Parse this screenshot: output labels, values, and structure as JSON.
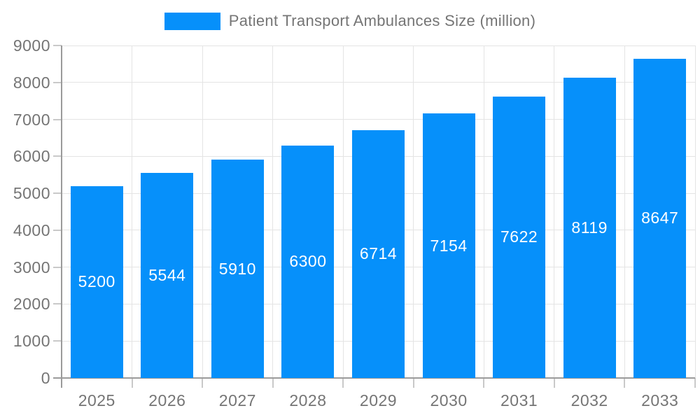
{
  "legend": {
    "label": "Patient Transport Ambulances Size (million)"
  },
  "chart_data": {
    "type": "bar",
    "title": "Patient Transport Ambulances Size (million)",
    "categories": [
      "2025",
      "2026",
      "2027",
      "2028",
      "2029",
      "2030",
      "2031",
      "2032",
      "2033"
    ],
    "values": [
      5200,
      5544,
      5910,
      6300,
      6714,
      7154,
      7622,
      8119,
      8647
    ],
    "xlabel": "",
    "ylabel": "",
    "ylim": [
      0,
      9000
    ],
    "ytick_interval": 1000,
    "ytick_labels": [
      "0",
      "1000",
      "2000",
      "3000",
      "4000",
      "5000",
      "6000",
      "7000",
      "8000",
      "9000"
    ],
    "grid": true,
    "legend_position": "top-center",
    "value_labels_shown": true,
    "value_label_position": "center-of-bar"
  },
  "colors": {
    "bar": "#0690fa",
    "axis_text": "#757575",
    "value_label": "#ffffff",
    "gridline": "#e4e4e4",
    "axis_line": "#9b9b9b",
    "tick": "#c9c9c9",
    "background": "#ffffff"
  }
}
